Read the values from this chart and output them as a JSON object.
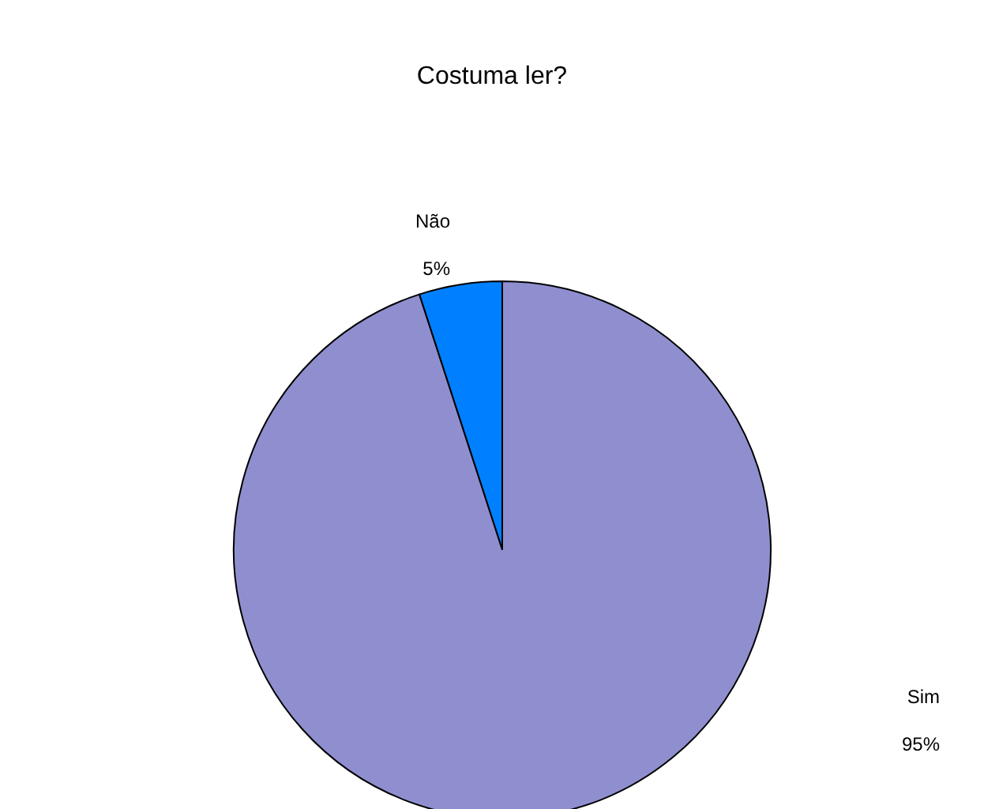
{
  "chart_data": {
    "type": "pie",
    "title": "Costuma ler?",
    "categories": [
      "Não",
      "Sim"
    ],
    "values": [
      5,
      95
    ],
    "colors": [
      "#0080ff",
      "#8f8fd0"
    ],
    "value_labels": [
      "5%",
      "95%"
    ]
  }
}
